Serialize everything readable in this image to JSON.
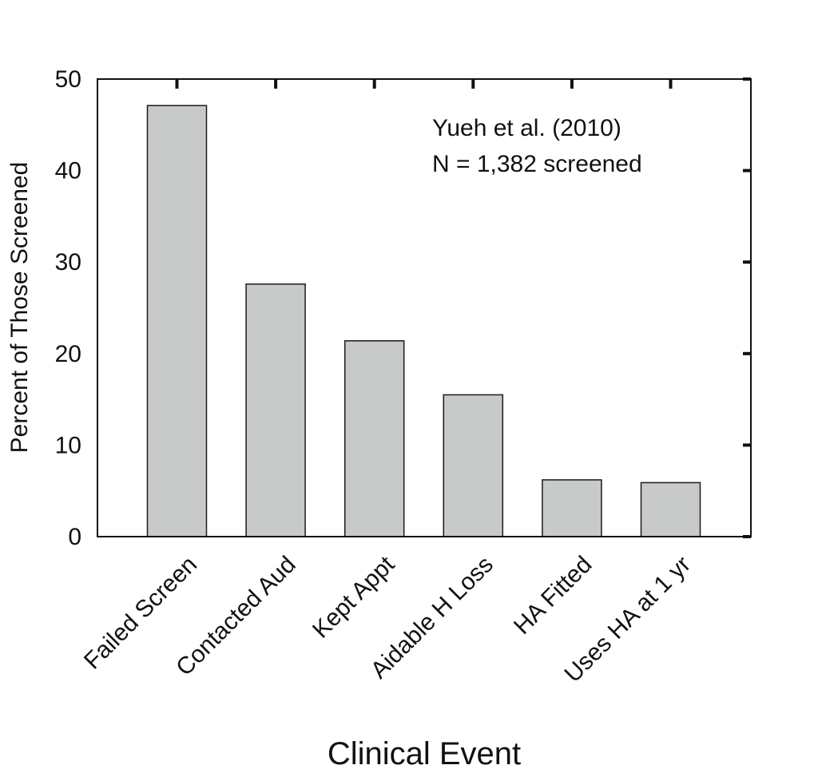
{
  "chart_data": {
    "type": "bar",
    "categories": [
      "Failed Screen",
      "Contacted Aud",
      "Kept Appt",
      "Aidable H Loss",
      "HA Fitted",
      "Uses HA at 1 yr"
    ],
    "values": [
      47.1,
      27.6,
      21.4,
      15.5,
      6.2,
      5.9
    ],
    "title": "",
    "xlabel": "Clinical Event",
    "ylabel": "Percent of Those Screened",
    "ylim": [
      0,
      50
    ],
    "yticks": [
      0,
      10,
      20,
      30,
      40,
      50
    ],
    "grid": false,
    "legend": null,
    "annotation": [
      "Yueh et al. (2010)",
      "N = 1,382 screened"
    ],
    "bar_color": "#c8cac9",
    "bar_edge_color": "#1a1a1a"
  }
}
